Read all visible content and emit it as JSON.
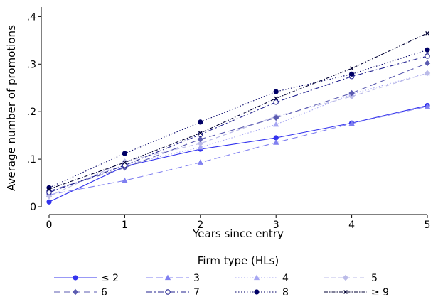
{
  "chart_data": {
    "type": "line",
    "xlabel": "Years since entry",
    "ylabel": "Average number of promotions",
    "xlim": [
      0,
      5
    ],
    "ylim": [
      0,
      0.42
    ],
    "x_ticks": [
      0,
      1,
      2,
      3,
      4,
      5
    ],
    "x_tick_labels": [
      "0",
      "1",
      "2",
      "3",
      "4",
      "5"
    ],
    "y_ticks": [
      0,
      0.1,
      0.2,
      0.3,
      0.4
    ],
    "y_tick_labels": [
      "0",
      ".1",
      ".2",
      ".3",
      ".4"
    ],
    "grid": false,
    "legend_title": "Firm type (HLs)",
    "legend_position": "bottom",
    "x": [
      0,
      1,
      2,
      3,
      4,
      5
    ],
    "series": [
      {
        "name": "≤ 2",
        "values": [
          0.01,
          0.085,
          0.121,
          0.145,
          0.176,
          0.213
        ],
        "color": "#3333ee",
        "dash": "solid",
        "marker": "circle-filled"
      },
      {
        "name": "3",
        "values": [
          0.025,
          0.055,
          0.093,
          0.135,
          0.175,
          0.211
        ],
        "color": "#7f7ff0",
        "dash": "longdash",
        "marker": "triangle-filled"
      },
      {
        "name": "4",
        "values": [
          0.03,
          0.088,
          0.125,
          0.173,
          0.237,
          0.281
        ],
        "color": "#a6a6f2",
        "dash": "dotted",
        "marker": "triangle-filled"
      },
      {
        "name": "5",
        "values": [
          0.022,
          0.095,
          0.133,
          0.19,
          0.232,
          0.281
        ],
        "color": "#bbbbe8",
        "dash": "dash",
        "marker": "diamond-filled"
      },
      {
        "name": "6",
        "values": [
          0.033,
          0.082,
          0.142,
          0.187,
          0.239,
          0.302
        ],
        "color": "#5b5bb0",
        "dash": "longdash",
        "marker": "diamond-filled"
      },
      {
        "name": "7",
        "values": [
          0.03,
          0.087,
          0.152,
          0.22,
          0.274,
          0.317
        ],
        "color": "#22228f",
        "dash": "dashdot",
        "marker": "circle-hollow"
      },
      {
        "name": "8",
        "values": [
          0.04,
          0.112,
          0.178,
          0.242,
          0.279,
          0.33
        ],
        "color": "#000066",
        "dash": "dotted",
        "marker": "circle-filled"
      },
      {
        "name": "≥ 9",
        "values": [
          0.037,
          0.093,
          0.155,
          0.228,
          0.291,
          0.365
        ],
        "color": "#000033",
        "dash": "dashdot-dense",
        "marker": "x"
      }
    ]
  }
}
